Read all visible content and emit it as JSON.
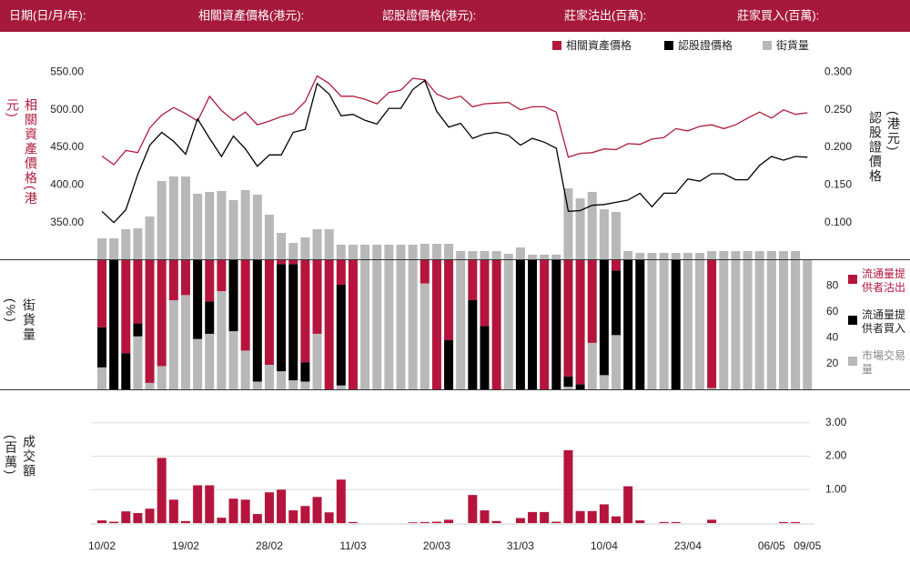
{
  "header": {
    "labels": [
      "日期(日/月/年):",
      "相關資產價格(港元):",
      "認股證價格(港元):",
      "莊家沽出(百萬):",
      "莊家買入(百萬):"
    ]
  },
  "chart_data": [
    {
      "type": "line",
      "y_label": "相關資產價格(港元)",
      "y2_label": "認股證價格(港元)",
      "ylim": [
        300,
        565
      ],
      "yticks": [
        {
          "value": 350,
          "label": "350.00"
        },
        {
          "value": 400,
          "label": "400.00"
        },
        {
          "value": 450,
          "label": "450.00"
        },
        {
          "value": 500,
          "label": "500.00"
        },
        {
          "value": 550,
          "label": "550.00"
        }
      ],
      "y2lim": [
        0.05,
        0.315
      ],
      "y2ticks": [
        {
          "value": 0.1,
          "label": "0.100"
        },
        {
          "value": 0.15,
          "label": "0.150"
        },
        {
          "value": 0.2,
          "label": "0.200"
        },
        {
          "value": 0.25,
          "label": "0.250"
        },
        {
          "value": 0.3,
          "label": "0.300"
        }
      ],
      "series": [
        {
          "name": "相關資產價格",
          "color": "#b11a3a",
          "axis": "y",
          "values": [
            438.5,
            427,
            446,
            443,
            476,
            493,
            503,
            495,
            485,
            518,
            499,
            486,
            497,
            480,
            485,
            491,
            495,
            511,
            545,
            535,
            518,
            518,
            514,
            508,
            523,
            526,
            542,
            540,
            521,
            514,
            518,
            504,
            508,
            509,
            510,
            500,
            504,
            504,
            497,
            437,
            442,
            443,
            448,
            447,
            455,
            454,
            461,
            463,
            475,
            472,
            478,
            480,
            475,
            480,
            489,
            497,
            489,
            500,
            494,
            496
          ]
        },
        {
          "name": "認股證價格",
          "color": "#000000",
          "axis": "y2",
          "values": [
            0.115,
            0.1,
            0.117,
            0.164,
            0.203,
            0.22,
            0.208,
            0.191,
            0.238,
            0.212,
            0.188,
            0.215,
            0.198,
            0.175,
            0.19,
            0.19,
            0.22,
            0.224,
            0.285,
            0.271,
            0.242,
            0.244,
            0.236,
            0.231,
            0.252,
            0.252,
            0.277,
            0.289,
            0.248,
            0.227,
            0.232,
            0.212,
            0.218,
            0.22,
            0.216,
            0.203,
            0.212,
            0.207,
            0.199,
            0.115,
            0.116,
            0.123,
            0.124,
            0.127,
            0.13,
            0.139,
            0.121,
            0.139,
            0.139,
            0.158,
            0.155,
            0.165,
            0.165,
            0.157,
            0.157,
            0.176,
            0.188,
            0.183,
            0.188,
            0.187
          ]
        },
        {
          "name": "街貨量",
          "color": "#b8b8b8",
          "type": "bar",
          "values": [
            23,
            23,
            33,
            34,
            47,
            86,
            91,
            91,
            72,
            74,
            75,
            65,
            76,
            71,
            49,
            29,
            18,
            24,
            33,
            33,
            16,
            16,
            16,
            16,
            16,
            16,
            16,
            17,
            17,
            17,
            9,
            9,
            9,
            9,
            6,
            13,
            5,
            5,
            5,
            78,
            67,
            74,
            55,
            52,
            9,
            7,
            7,
            7,
            7,
            7,
            7,
            9,
            9,
            9,
            9,
            9,
            9,
            9,
            9,
            null
          ]
        }
      ]
    },
    {
      "type": "stacked_bar",
      "y_label": "街貨量(%)",
      "ylim": [
        0,
        100
      ],
      "yticks": [
        20,
        40,
        60,
        80
      ],
      "series": [
        {
          "name": "流通量提供者沽出",
          "color": "#b5153c",
          "values": [
            52,
            0,
            72,
            49,
            95,
            82,
            31,
            27,
            0,
            32,
            24,
            0,
            70,
            0,
            81,
            3,
            3,
            79,
            57,
            100,
            19,
            100,
            0,
            0,
            0,
            0,
            0,
            18,
            100,
            62,
            0,
            31,
            51,
            100,
            0,
            0,
            0,
            100,
            0,
            90,
            96,
            64,
            0,
            8,
            0,
            0,
            0,
            0,
            0,
            0,
            0,
            99,
            0,
            0,
            0,
            0,
            0,
            0,
            0,
            0
          ]
        },
        {
          "name": "流通量提供者買入",
          "color": "#000000",
          "values": [
            31,
            100,
            28,
            10,
            0,
            0,
            0,
            0,
            61,
            25,
            0,
            55,
            0,
            94,
            0,
            83,
            90,
            15,
            0,
            0,
            78,
            0,
            0,
            0,
            0,
            0,
            0,
            0,
            0,
            38,
            0,
            69,
            49,
            0,
            0,
            100,
            100,
            0,
            100,
            8,
            4,
            0,
            89,
            50,
            100,
            100,
            0,
            0,
            100,
            0,
            0,
            0,
            0,
            0,
            0,
            0,
            0,
            0,
            0,
            0
          ]
        },
        {
          "name": "市場交易量",
          "color": "#b8b8b8",
          "values": [
            17,
            0,
            0,
            41,
            5,
            18,
            69,
            73,
            39,
            43,
            76,
            45,
            30,
            6,
            19,
            14,
            7,
            6,
            43,
            0,
            3,
            0,
            100,
            100,
            100,
            100,
            100,
            82,
            0,
            0,
            100,
            0,
            0,
            0,
            100,
            0,
            0,
            0,
            0,
            2,
            0,
            36,
            11,
            42,
            0,
            0,
            100,
            100,
            0,
            100,
            100,
            1,
            100,
            100,
            100,
            100,
            100,
            100,
            100,
            100
          ]
        }
      ]
    },
    {
      "type": "bar",
      "y_label": "成交額(百萬)",
      "color": "#b5153c",
      "ylim": [
        0,
        4
      ],
      "yticks": [
        {
          "value": 1,
          "label": "1.00"
        },
        {
          "value": 2,
          "label": "2.00"
        },
        {
          "value": 3,
          "label": "3.00"
        }
      ],
      "grid": true,
      "categories": [
        "10/02",
        null,
        null,
        null,
        null,
        null,
        null,
        "19/02",
        null,
        null,
        null,
        null,
        null,
        null,
        "28/02",
        null,
        null,
        null,
        null,
        null,
        null,
        "11/03",
        null,
        null,
        null,
        null,
        null,
        null,
        "20/03",
        null,
        null,
        null,
        null,
        null,
        null,
        "31/03",
        null,
        null,
        null,
        null,
        null,
        null,
        "10/04",
        null,
        null,
        null,
        null,
        null,
        null,
        "23/04",
        null,
        null,
        null,
        null,
        null,
        null,
        "06/05",
        null,
        null,
        "09/05"
      ],
      "values": [
        0.08,
        0.04,
        0.35,
        0.3,
        0.43,
        1.95,
        0.7,
        0.06,
        1.13,
        1.13,
        0.16,
        0.73,
        0.7,
        0.27,
        0.92,
        1,
        0.38,
        0.51,
        0.78,
        0.32,
        1.3,
        0.03,
        0,
        0,
        0,
        0,
        0.02,
        0.03,
        0.04,
        0.1,
        0,
        0.84,
        0.38,
        0.06,
        0,
        0.15,
        0.33,
        0.33,
        0.04,
        2.18,
        0.36,
        0.36,
        0.56,
        0.2,
        1.1,
        0.08,
        0,
        0.03,
        0.03,
        0,
        0,
        0.1,
        0,
        0,
        0,
        0,
        0,
        0.03,
        0.03,
        0
      ]
    }
  ]
}
